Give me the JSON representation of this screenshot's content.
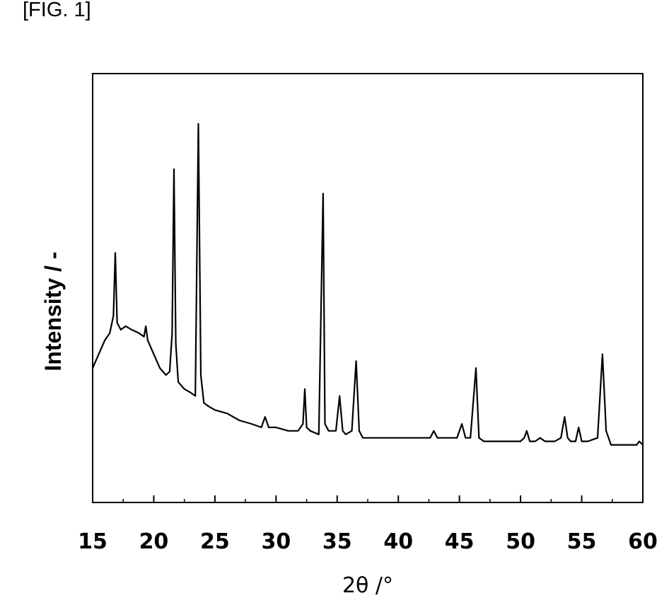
{
  "figure_label": "[FIG. 1]",
  "chart_data": {
    "type": "line",
    "title": "",
    "xlabel": "2θ /°",
    "ylabel": "Intensity / -",
    "xlim": [
      15,
      60
    ],
    "ylim": [
      0,
      1
    ],
    "xticks": [
      15,
      20,
      25,
      30,
      35,
      40,
      45,
      50,
      55,
      60
    ],
    "yticks": [],
    "grid": false,
    "legend": "none",
    "line_color": "#000000",
    "series": [
      {
        "x": [
          15.0,
          15.5,
          16.0,
          16.4,
          16.7,
          16.85,
          17.0,
          17.3,
          17.7,
          18.2,
          18.8,
          19.2,
          19.35,
          19.5,
          20.0,
          20.5,
          21.0,
          21.3,
          21.5,
          21.65,
          21.8,
          22.0,
          22.5,
          23.0,
          23.4,
          23.65,
          23.85,
          24.1,
          24.5,
          25.0,
          26.0,
          27.0,
          28.0,
          28.8,
          29.1,
          29.4,
          30.0,
          31.0,
          31.8,
          32.2,
          32.35,
          32.5,
          32.8,
          33.5,
          33.85,
          34.0,
          34.3,
          34.9,
          35.2,
          35.45,
          35.7,
          36.2,
          36.55,
          36.8,
          37.1,
          38.0,
          39.0,
          40.0,
          41.0,
          42.0,
          42.6,
          42.9,
          43.2,
          44.0,
          44.8,
          45.2,
          45.5,
          45.9,
          46.35,
          46.6,
          47.0,
          48.0,
          49.0,
          50.0,
          50.3,
          50.5,
          50.75,
          51.2,
          51.6,
          52.0,
          52.8,
          53.3,
          53.6,
          53.85,
          54.1,
          54.5,
          54.75,
          55.0,
          55.5,
          56.3,
          56.7,
          57.0,
          57.4,
          58.0,
          59.0,
          59.5,
          59.7,
          60.0
        ],
        "y": [
          0.3,
          0.34,
          0.38,
          0.4,
          0.45,
          0.63,
          0.43,
          0.41,
          0.42,
          0.41,
          0.4,
          0.39,
          0.42,
          0.38,
          0.34,
          0.3,
          0.28,
          0.29,
          0.4,
          0.87,
          0.37,
          0.26,
          0.24,
          0.23,
          0.22,
          1.0,
          0.28,
          0.2,
          0.19,
          0.18,
          0.17,
          0.15,
          0.14,
          0.13,
          0.16,
          0.13,
          0.13,
          0.12,
          0.12,
          0.14,
          0.24,
          0.13,
          0.12,
          0.11,
          0.8,
          0.14,
          0.12,
          0.12,
          0.22,
          0.12,
          0.11,
          0.12,
          0.32,
          0.12,
          0.1,
          0.1,
          0.1,
          0.1,
          0.1,
          0.1,
          0.1,
          0.12,
          0.1,
          0.1,
          0.1,
          0.14,
          0.1,
          0.1,
          0.3,
          0.1,
          0.09,
          0.09,
          0.09,
          0.09,
          0.1,
          0.12,
          0.09,
          0.09,
          0.1,
          0.09,
          0.09,
          0.1,
          0.16,
          0.1,
          0.09,
          0.09,
          0.13,
          0.09,
          0.09,
          0.1,
          0.34,
          0.12,
          0.08,
          0.08,
          0.08,
          0.08,
          0.09,
          0.08
        ]
      }
    ]
  }
}
